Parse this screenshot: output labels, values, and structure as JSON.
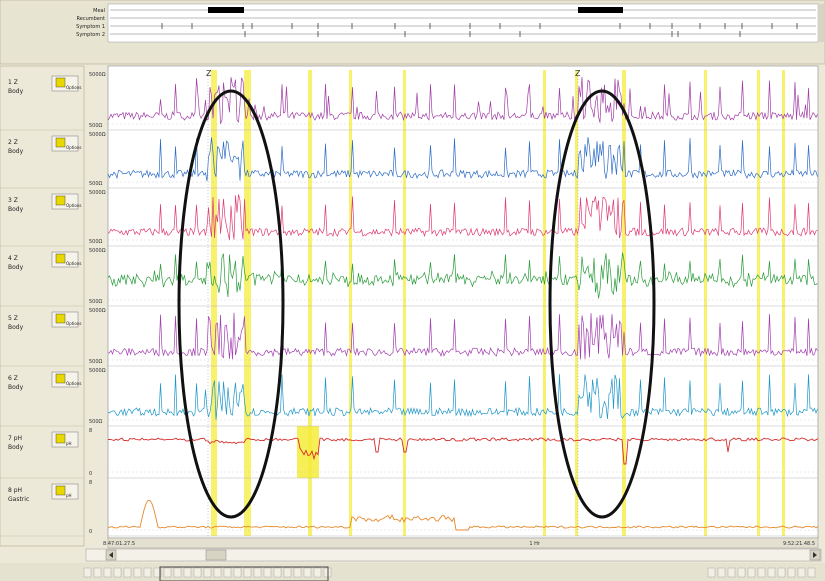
{
  "events": {
    "labels": [
      "Meal",
      "Recumbent",
      "Symptom 1",
      "Symptom 2"
    ]
  },
  "channels": [
    {
      "title": "1 Z",
      "subtitle": "Body",
      "button": "Options",
      "top_tick": "5000Ω",
      "bottom_tick": "500Ω",
      "color": "#a13ea6"
    },
    {
      "title": "2 Z",
      "subtitle": "Body",
      "button": "Options",
      "top_tick": "5000Ω",
      "bottom_tick": "500Ω",
      "color": "#2f6dc6"
    },
    {
      "title": "3 Z",
      "subtitle": "Body",
      "button": "Options",
      "top_tick": "5000Ω",
      "bottom_tick": "500Ω",
      "color": "#de3b74"
    },
    {
      "title": "4 Z",
      "subtitle": "Body",
      "button": "Options",
      "top_tick": "5000Ω",
      "bottom_tick": "500Ω",
      "color": "#2a9c3a"
    },
    {
      "title": "5 Z",
      "subtitle": "Body",
      "button": "Options",
      "top_tick": "5000Ω",
      "bottom_tick": "500Ω",
      "color": "#a23fb0"
    },
    {
      "title": "6 Z",
      "subtitle": "Body",
      "button": "Options",
      "top_tick": "5000Ω",
      "bottom_tick": "500Ω",
      "color": "#1f97c8"
    },
    {
      "title": "7 pH",
      "subtitle": "Body",
      "button": "pH",
      "top_tick": "8",
      "bottom_tick": "0",
      "color": "#d62d2d"
    },
    {
      "title": "8 pH",
      "subtitle": "Gastric",
      "button": "pH",
      "top_tick": "8",
      "bottom_tick": "0",
      "color": "#e6892c"
    }
  ],
  "markers": [
    "Z",
    "Z"
  ],
  "time": {
    "start": "8:47:01.27.5",
    "mid": "1 Hr",
    "end": "9:52:21.48.5"
  },
  "colors": {
    "highlight": "#f4ec3a",
    "ellipse": "#111111",
    "panel": "#ece9d8",
    "plot_bg": "#ffffff"
  }
}
